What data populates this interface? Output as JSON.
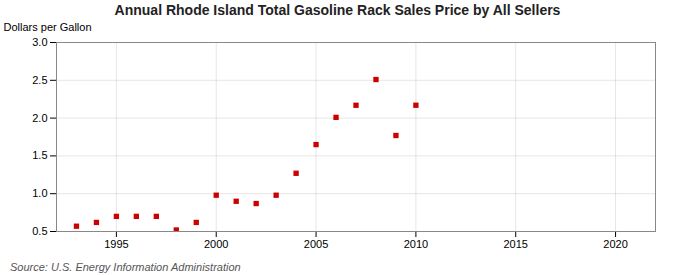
{
  "chart_data": {
    "type": "scatter",
    "title": "Annual Rhode Island Total Gasoline Rack Sales Price by All Sellers",
    "ylabel": "Dollars per Gallon",
    "source": "Source: U.S. Energy Information Administration",
    "x": [
      1993,
      1994,
      1995,
      1996,
      1997,
      1998,
      1999,
      2000,
      2001,
      2002,
      2003,
      2004,
      2005,
      2006,
      2007,
      2008,
      2009,
      2010
    ],
    "values": [
      0.57,
      0.62,
      0.7,
      0.7,
      0.7,
      0.52,
      0.62,
      0.98,
      0.9,
      0.87,
      0.98,
      1.27,
      1.65,
      2.01,
      2.17,
      2.51,
      1.77,
      2.17
    ],
    "color": "#cc0000",
    "marker": "square",
    "xlim": [
      1992,
      2022
    ],
    "ylim": [
      0.5,
      3.0
    ],
    "xticks": [
      1995,
      2000,
      2005,
      2010,
      2015,
      2020
    ],
    "yticks": [
      0.5,
      {
        "value": 1.0,
        "label": "1.0"
      },
      1.5,
      {
        "value": 2.0,
        "label": "2.0"
      },
      2.5,
      {
        "value": 3.0,
        "label": "3.0"
      }
    ],
    "grid": true
  }
}
